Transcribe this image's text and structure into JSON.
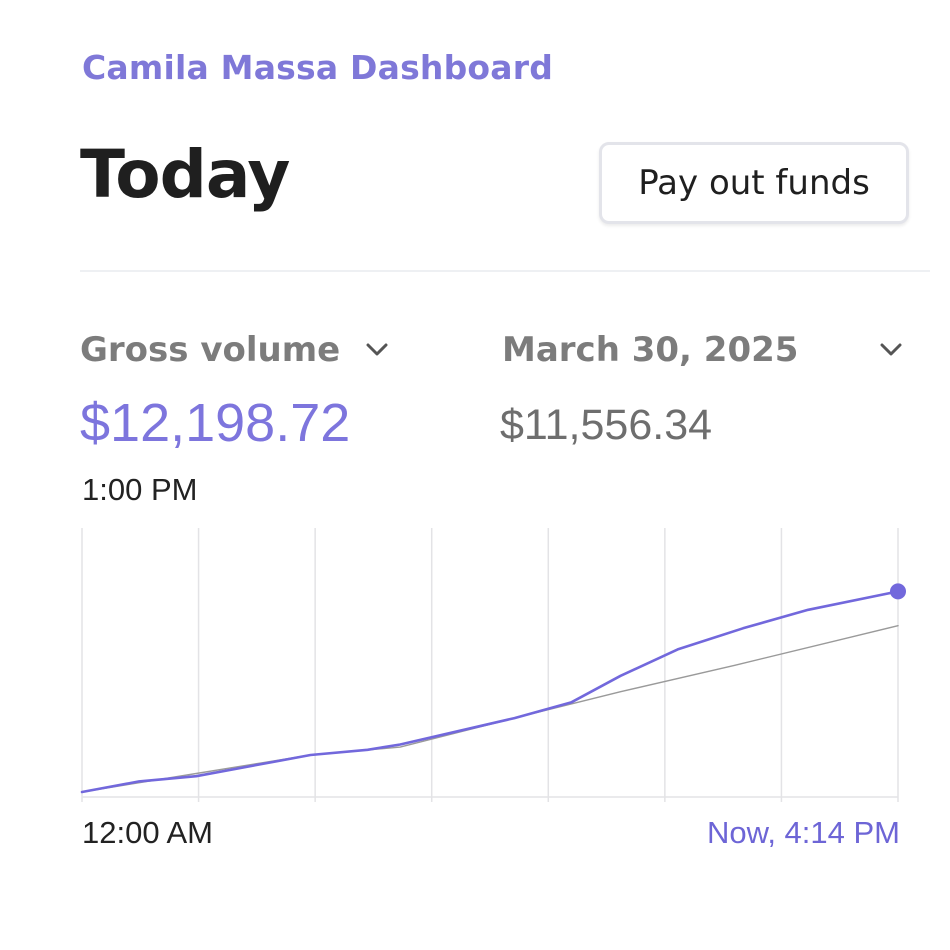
{
  "header": {
    "brand": "Camila Massa Dashboard",
    "title": "Today",
    "payout_button": "Pay out funds"
  },
  "metrics": {
    "metric_label": "Gross volume",
    "metric_value": "$12,198.72",
    "compare_label": "March 30, 2025",
    "compare_value": "$11,556.34",
    "hover_time": "1:00 PM"
  },
  "chart_data": {
    "type": "line",
    "x_start_label": "12:00 AM",
    "x_end_label": "Now, 4:14 PM",
    "colors": {
      "current": "#7268dc",
      "comparison": "#9a9a9a",
      "grid": "#e3e3e6"
    },
    "series": [
      {
        "name": "Gross volume",
        "color": "#7268dc",
        "x": [
          0.0,
          0.07,
          0.14,
          0.21,
          0.28,
          0.35,
          0.39,
          0.46,
          0.53,
          0.6,
          0.66,
          0.73,
          0.81,
          0.89,
          1.0
        ],
        "values": [
          0.0,
          0.04,
          0.06,
          0.1,
          0.14,
          0.16,
          0.18,
          0.23,
          0.28,
          0.34,
          0.44,
          0.54,
          0.62,
          0.69,
          0.76
        ]
      },
      {
        "name": "March 30, 2025",
        "color": "#9a9a9a",
        "x": [
          0.0,
          0.14,
          0.28,
          0.39,
          0.53,
          0.66,
          0.8,
          1.0
        ],
        "values": [
          0.0,
          0.07,
          0.14,
          0.17,
          0.28,
          0.38,
          0.48,
          0.63
        ]
      }
    ]
  },
  "icons": {
    "metric_chevron": "chevron-down-icon",
    "compare_chevron": "chevron-down-icon"
  }
}
